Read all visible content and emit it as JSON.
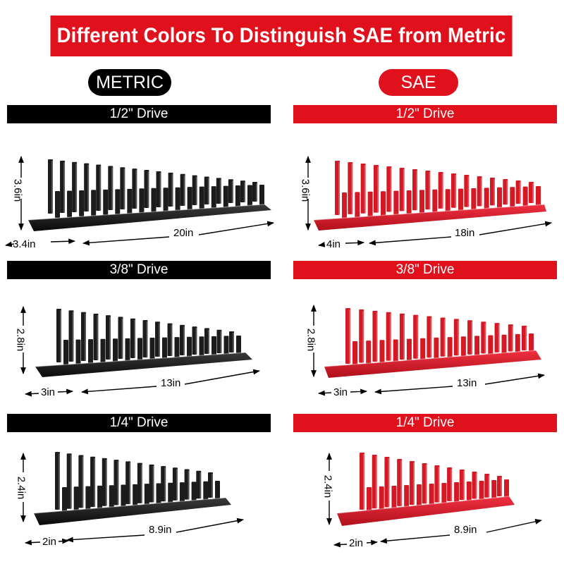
{
  "header": {
    "title": "Different Colors To Distinguish SAE from Metric"
  },
  "labels": {
    "metric": "METRIC",
    "sae": "SAE"
  },
  "colors": {
    "metric": "#000000",
    "sae": "#e0101d",
    "rack_metric": "#1a1a1a",
    "rack_sae": "#d41824"
  },
  "racks": {
    "metric": [
      {
        "drive": "1/2\" Drive",
        "height": "3.6in",
        "width": "3.4in",
        "length": "20in"
      },
      {
        "drive": "3/8\" Drive",
        "height": "2.8in",
        "width": "3in",
        "length": "13in"
      },
      {
        "drive": "1/4\" Drive",
        "height": "2.4in",
        "width": "2in",
        "length": "8.9in"
      }
    ],
    "sae": [
      {
        "drive": "1/2\" Drive",
        "height": "3.6in",
        "width": "4in",
        "length": "18in"
      },
      {
        "drive": "3/8\" Drive",
        "height": "2.8in",
        "width": "3in",
        "length": "13in"
      },
      {
        "drive": "1/4\" Drive",
        "height": "2.4in",
        "width": "2in",
        "length": "8.9in"
      }
    ]
  }
}
